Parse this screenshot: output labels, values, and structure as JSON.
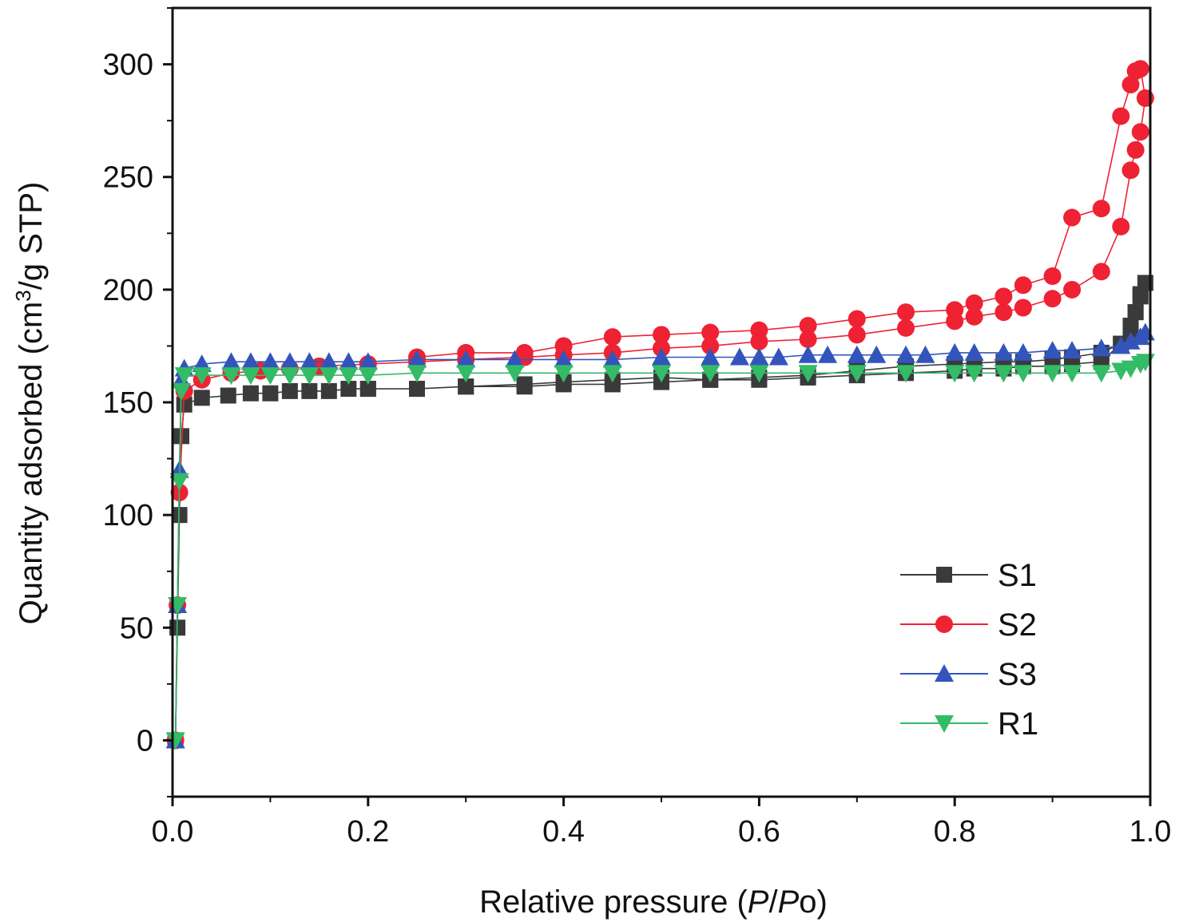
{
  "chart_data": {
    "type": "line",
    "title": "",
    "xlabel_parts": [
      "Relative pressure (",
      "P",
      "/",
      "P",
      "o)"
    ],
    "ylabel_parts": [
      "Quantity adsorbed (cm",
      "3",
      "/g STP)"
    ],
    "xlim": [
      0.0,
      1.0
    ],
    "ylim": [
      -25,
      325
    ],
    "x_ticks": [
      0.0,
      0.2,
      0.4,
      0.6,
      0.8,
      1.0
    ],
    "x_tick_labels": [
      "0.0",
      "0.2",
      "0.4",
      "0.6",
      "0.8",
      "1.0"
    ],
    "y_ticks": [
      0,
      50,
      100,
      150,
      200,
      250,
      300
    ],
    "y_tick_labels": [
      "0",
      "50",
      "100",
      "150",
      "200",
      "250",
      "300"
    ],
    "grid": false,
    "legend_position": "bottom-right",
    "series": [
      {
        "name": "S1",
        "color": "#3a3a3a",
        "marker": "square",
        "x": [
          0.003,
          0.005,
          0.007,
          0.009,
          0.012,
          0.03,
          0.057,
          0.08,
          0.1,
          0.12,
          0.14,
          0.16,
          0.18,
          0.2,
          0.25,
          0.3,
          0.36,
          0.4,
          0.45,
          0.5,
          0.55,
          0.6,
          0.65,
          0.7,
          0.75,
          0.8,
          0.82,
          0.85,
          0.87,
          0.9,
          0.92,
          0.95,
          0.97,
          0.98,
          0.985,
          0.99,
          0.995,
          0.99,
          0.985,
          0.98,
          0.97,
          0.95,
          0.92,
          0.9,
          0.87,
          0.85,
          0.8,
          0.75,
          0.7,
          0.65,
          0.6,
          0.55,
          0.5,
          0.45,
          0.4,
          0.36,
          0.3,
          0.25,
          0.2
        ],
        "y": [
          0,
          50,
          100,
          135,
          149,
          152,
          153,
          154,
          154,
          155,
          155,
          155,
          156,
          156,
          156,
          157,
          157,
          158,
          158,
          159,
          160,
          160,
          161,
          162,
          163,
          164,
          165,
          165,
          166,
          166,
          167,
          168,
          176,
          182,
          190,
          198,
          203,
          197,
          190,
          184,
          176,
          172,
          170,
          169,
          168,
          168,
          167,
          166,
          164,
          162,
          161,
          160,
          161,
          160,
          159,
          158,
          157,
          156,
          156
        ]
      },
      {
        "name": "S2",
        "color": "#ee2233",
        "marker": "circle",
        "x": [
          0.003,
          0.005,
          0.007,
          0.012,
          0.03,
          0.06,
          0.09,
          0.12,
          0.15,
          0.2,
          0.25,
          0.3,
          0.36,
          0.4,
          0.45,
          0.5,
          0.55,
          0.6,
          0.65,
          0.7,
          0.75,
          0.8,
          0.82,
          0.85,
          0.87,
          0.9,
          0.92,
          0.95,
          0.97,
          0.98,
          0.985,
          0.99,
          0.995,
          0.99,
          0.985,
          0.98,
          0.97,
          0.95,
          0.92,
          0.9,
          0.87,
          0.85,
          0.82,
          0.8,
          0.75,
          0.7,
          0.65,
          0.6,
          0.55,
          0.5,
          0.45,
          0.4,
          0.36,
          0.3,
          0.25
        ],
        "y": [
          0,
          60,
          110,
          155,
          160,
          163,
          164,
          165,
          166,
          167,
          168,
          169,
          170,
          171,
          172,
          174,
          175,
          177,
          178,
          180,
          183,
          186,
          188,
          190,
          192,
          196,
          200,
          208,
          228,
          253,
          262,
          270,
          285,
          298,
          297,
          291,
          277,
          236,
          232,
          206,
          202,
          197,
          194,
          191,
          190,
          187,
          184,
          182,
          181,
          180,
          179,
          175,
          172,
          172,
          170
        ]
      },
      {
        "name": "S3",
        "color": "#3355bb",
        "marker": "triangle-up",
        "x": [
          0.003,
          0.005,
          0.007,
          0.009,
          0.012,
          0.03,
          0.06,
          0.08,
          0.1,
          0.12,
          0.14,
          0.16,
          0.18,
          0.2,
          0.25,
          0.3,
          0.35,
          0.4,
          0.45,
          0.5,
          0.55,
          0.58,
          0.6,
          0.62,
          0.65,
          0.67,
          0.7,
          0.72,
          0.75,
          0.77,
          0.8,
          0.82,
          0.85,
          0.87,
          0.9,
          0.92,
          0.95,
          0.97,
          0.98,
          0.99,
          0.995
        ],
        "y": [
          0,
          60,
          120,
          160,
          165,
          167,
          168,
          168,
          168,
          168,
          168,
          168,
          168,
          168,
          169,
          169,
          169,
          169,
          169,
          170,
          170,
          170,
          170,
          170,
          171,
          171,
          171,
          171,
          171,
          171,
          172,
          172,
          172,
          172,
          173,
          173,
          174,
          175,
          177,
          179,
          181
        ]
      },
      {
        "name": "R1",
        "color": "#33bb66",
        "marker": "triangle-down",
        "x": [
          0.003,
          0.005,
          0.007,
          0.009,
          0.012,
          0.03,
          0.06,
          0.08,
          0.1,
          0.12,
          0.14,
          0.16,
          0.18,
          0.2,
          0.25,
          0.3,
          0.35,
          0.4,
          0.45,
          0.5,
          0.55,
          0.6,
          0.65,
          0.7,
          0.75,
          0.8,
          0.82,
          0.85,
          0.87,
          0.9,
          0.92,
          0.95,
          0.97,
          0.98,
          0.99,
          0.995
        ],
        "y": [
          0,
          60,
          115,
          155,
          162,
          162,
          162,
          162,
          162,
          162,
          162,
          162,
          162,
          162,
          163,
          163,
          163,
          163,
          163,
          163,
          163,
          163,
          163,
          163,
          163,
          163,
          163,
          163,
          163,
          163,
          163,
          163,
          164,
          165,
          167,
          168
        ]
      }
    ]
  }
}
